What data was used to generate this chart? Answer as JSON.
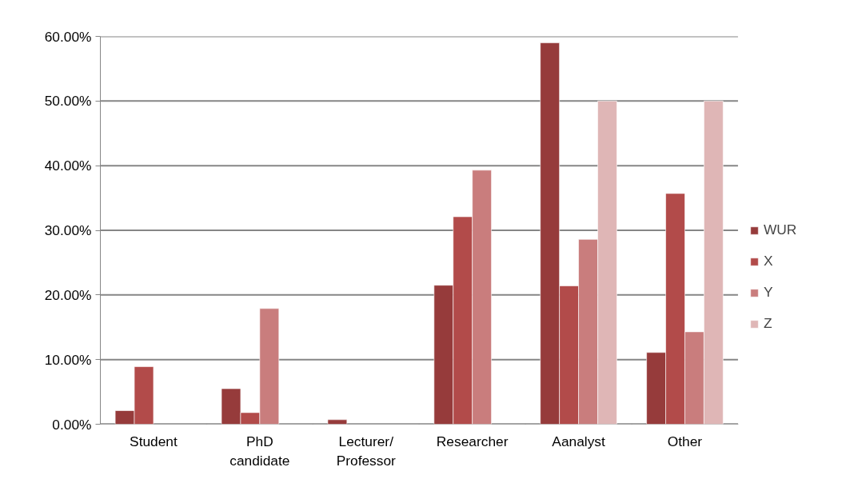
{
  "chart_data": {
    "type": "bar",
    "categories": [
      "Student",
      "PhD candidate",
      "Lecturer/ Professor",
      "Researcher",
      "Aanalyst",
      "Other"
    ],
    "series": [
      {
        "name": "WUR",
        "color": "#963b3b",
        "values": [
          2.1,
          5.5,
          0.7,
          21.5,
          59.0,
          11.1
        ]
      },
      {
        "name": "X",
        "color": "#b24b4a",
        "values": [
          8.9,
          1.8,
          null,
          32.1,
          21.4,
          35.7
        ]
      },
      {
        "name": "Y",
        "color": "#c97d7d",
        "values": [
          null,
          17.9,
          null,
          39.3,
          28.6,
          14.3
        ]
      },
      {
        "name": "Z",
        "color": "#dfb6b6",
        "values": [
          null,
          null,
          null,
          null,
          50,
          50
        ]
      }
    ],
    "ylim": [
      0,
      60
    ],
    "yticks": [
      {
        "value": 0,
        "label": "0.00%"
      },
      {
        "value": 10,
        "label": "10.00%"
      },
      {
        "value": 20,
        "label": "20.00%"
      },
      {
        "value": 30,
        "label": "30.00%"
      },
      {
        "value": 40,
        "label": "40.00%"
      },
      {
        "value": 50,
        "label": "50.00%"
      },
      {
        "value": 60,
        "label": "60.00%"
      }
    ],
    "grid": "y",
    "legend": "right"
  }
}
